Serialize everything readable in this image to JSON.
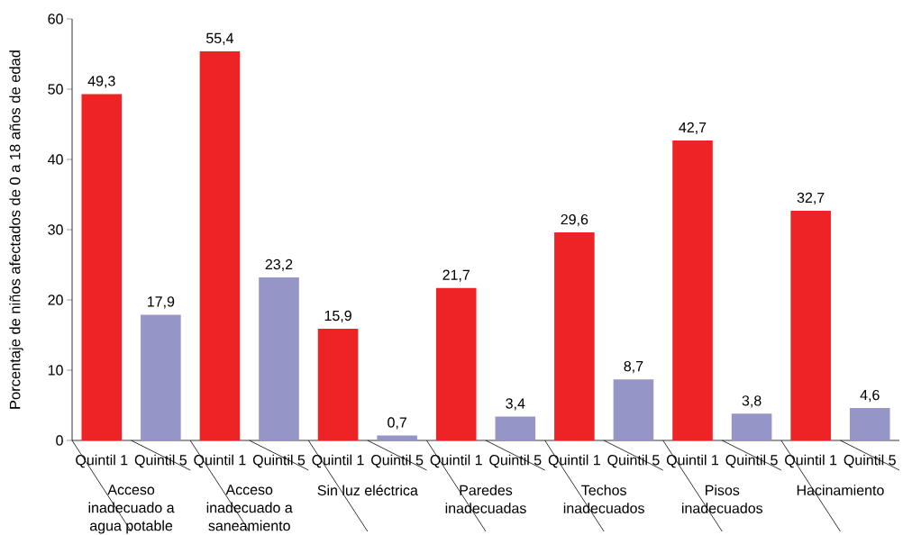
{
  "chart_data": {
    "type": "bar",
    "categories": [
      "Acceso inadecuado a agua potable",
      "Acceso inadecuado a saneamiento",
      "Sin luz eléctrica",
      "Paredes inadecuadas",
      "Techos inadecuados",
      "Pisos inadecuados",
      "Hacinamiento"
    ],
    "ylabel": "Porcentaje de niños afectados de 0 a 18 años de edad",
    "series": [
      {
        "name": "Quintil 1",
        "color": "#ee2325",
        "values": [
          49.3,
          55.4,
          15.9,
          21.7,
          29.6,
          42.7,
          32.7
        ],
        "value_labels": [
          "49,3",
          "55,4",
          "15,9",
          "21,7",
          "29,6",
          "42,7",
          "32,7"
        ]
      },
      {
        "name": "Quintil 5",
        "color": "#9595c7",
        "values": [
          17.9,
          23.2,
          0.7,
          3.4,
          8.7,
          3.8,
          4.6
        ],
        "value_labels": [
          "17,9",
          "23,2",
          "0,7",
          "3,4",
          "8,7",
          "3,8",
          "4,6"
        ]
      }
    ],
    "ylim": [
      0,
      60
    ],
    "yticks": [
      0,
      10,
      20,
      30,
      40,
      50,
      60
    ]
  }
}
